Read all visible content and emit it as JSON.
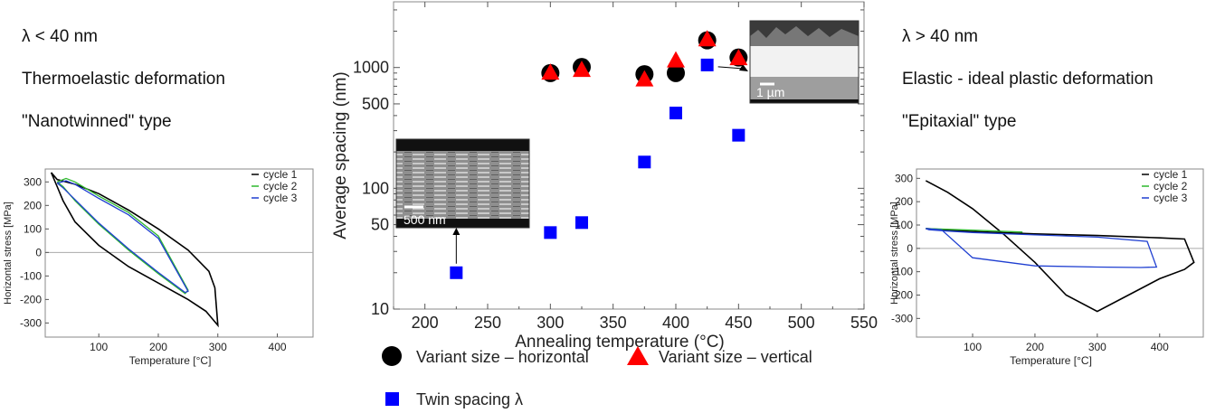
{
  "left_panel": {
    "lambda_condition": "λ < 40 nm",
    "deformation": "Thermoelastic deformation",
    "type": "\"Nanotwinned\" type"
  },
  "right_panel": {
    "lambda_condition": "λ > 40 nm",
    "deformation": "Elastic - ideal plastic deformation",
    "type": "\"Epitaxial\" type"
  },
  "colors": {
    "variant_horizontal": "#000000",
    "variant_vertical": "#ff0000",
    "twin_spacing": "#0000ff",
    "cycle1": "#000000",
    "cycle2": "#2eb82e",
    "cycle3": "#1f3fd1"
  },
  "insets": {
    "left_scale_label": "500 nm",
    "right_scale_label": "1 µm"
  },
  "chart_data": [
    {
      "type": "scatter",
      "id": "main",
      "title": "",
      "xlabel": "Annealing temperature (°C)",
      "ylabel": "Average spacing (nm)",
      "xlim": [
        175,
        550
      ],
      "ylim": [
        10,
        3500
      ],
      "y_scale": "log",
      "x_ticks": [
        200,
        250,
        300,
        350,
        400,
        450,
        500,
        550
      ],
      "y_ticks": [
        10,
        50,
        100,
        500,
        1000
      ],
      "grid": false,
      "legend_position": "bottom",
      "series": [
        {
          "name": "Variant size – horizontal",
          "marker": "circle",
          "x": [
            300,
            325,
            375,
            400,
            425,
            450
          ],
          "y": [
            900,
            1010,
            880,
            900,
            1680,
            1210
          ]
        },
        {
          "name": "Variant size – vertical",
          "marker": "triangle",
          "x": [
            300,
            325,
            375,
            400,
            425,
            450
          ],
          "y": [
            910,
            960,
            800,
            1150,
            1720,
            1200
          ]
        },
        {
          "name": "Twin spacing λ",
          "marker": "square",
          "x": [
            225,
            300,
            325,
            375,
            400,
            425,
            450
          ],
          "y": [
            20,
            43,
            52,
            165,
            420,
            1050,
            275
          ]
        }
      ]
    },
    {
      "type": "line",
      "id": "left",
      "xlabel": "Temperature [°C]",
      "ylabel": "Horizontal stress [MPa]",
      "xlim": [
        10,
        460
      ],
      "ylim": [
        -360,
        355
      ],
      "x_ticks": [
        100,
        200,
        300,
        400
      ],
      "y_ticks": [
        -300,
        -200,
        -100,
        0,
        100,
        200,
        300
      ],
      "legend_position": "top-right",
      "series": [
        {
          "name": "cycle 1",
          "x": [
            20,
            30,
            60,
            100,
            150,
            200,
            250,
            285,
            295,
            300,
            280,
            250,
            200,
            150,
            100,
            60,
            40,
            30,
            20
          ],
          "y": [
            340,
            310,
            290,
            250,
            180,
            100,
            10,
            -80,
            -150,
            -310,
            -250,
            -200,
            -130,
            -60,
            30,
            130,
            220,
            280,
            340
          ]
        },
        {
          "name": "cycle 2",
          "x": [
            30,
            45,
            60,
            100,
            150,
            200,
            250,
            245,
            200,
            150,
            100,
            60,
            40,
            30
          ],
          "y": [
            300,
            315,
            300,
            240,
            170,
            70,
            -160,
            -175,
            -90,
            10,
            120,
            220,
            280,
            300
          ]
        },
        {
          "name": "cycle 3",
          "x": [
            30,
            45,
            60,
            100,
            150,
            200,
            250,
            245,
            200,
            150,
            100,
            60,
            40,
            30
          ],
          "y": [
            295,
            305,
            290,
            230,
            160,
            60,
            -165,
            -170,
            -85,
            15,
            125,
            225,
            275,
            295
          ]
        }
      ]
    },
    {
      "type": "line",
      "id": "right",
      "xlabel": "Temperature [°C]",
      "ylabel": "Horizontal stress [MPa]",
      "xlim": [
        10,
        470
      ],
      "ylim": [
        -380,
        340
      ],
      "x_ticks": [
        100,
        200,
        300,
        400
      ],
      "y_ticks": [
        -300,
        -200,
        -100,
        0,
        100,
        200,
        300
      ],
      "legend_position": "top-right",
      "series": [
        {
          "name": "cycle 1",
          "x": [
            25,
            60,
            100,
            150,
            200,
            250,
            300,
            350,
            400,
            440,
            455,
            440,
            400,
            300,
            200,
            100,
            25
          ],
          "y": [
            290,
            240,
            170,
            60,
            -60,
            -200,
            -270,
            -200,
            -130,
            -90,
            -60,
            40,
            45,
            55,
            62,
            72,
            85
          ]
        },
        {
          "name": "cycle 2",
          "x": [
            25,
            100,
            180
          ],
          "y": [
            85,
            78,
            70
          ]
        },
        {
          "name": "cycle 3",
          "x": [
            25,
            50,
            100,
            200,
            300,
            370,
            395,
            380,
            300,
            200,
            100,
            60,
            30,
            25
          ],
          "y": [
            85,
            80,
            -40,
            -75,
            -80,
            -82,
            -80,
            30,
            48,
            58,
            68,
            74,
            80,
            85
          ]
        }
      ]
    }
  ]
}
